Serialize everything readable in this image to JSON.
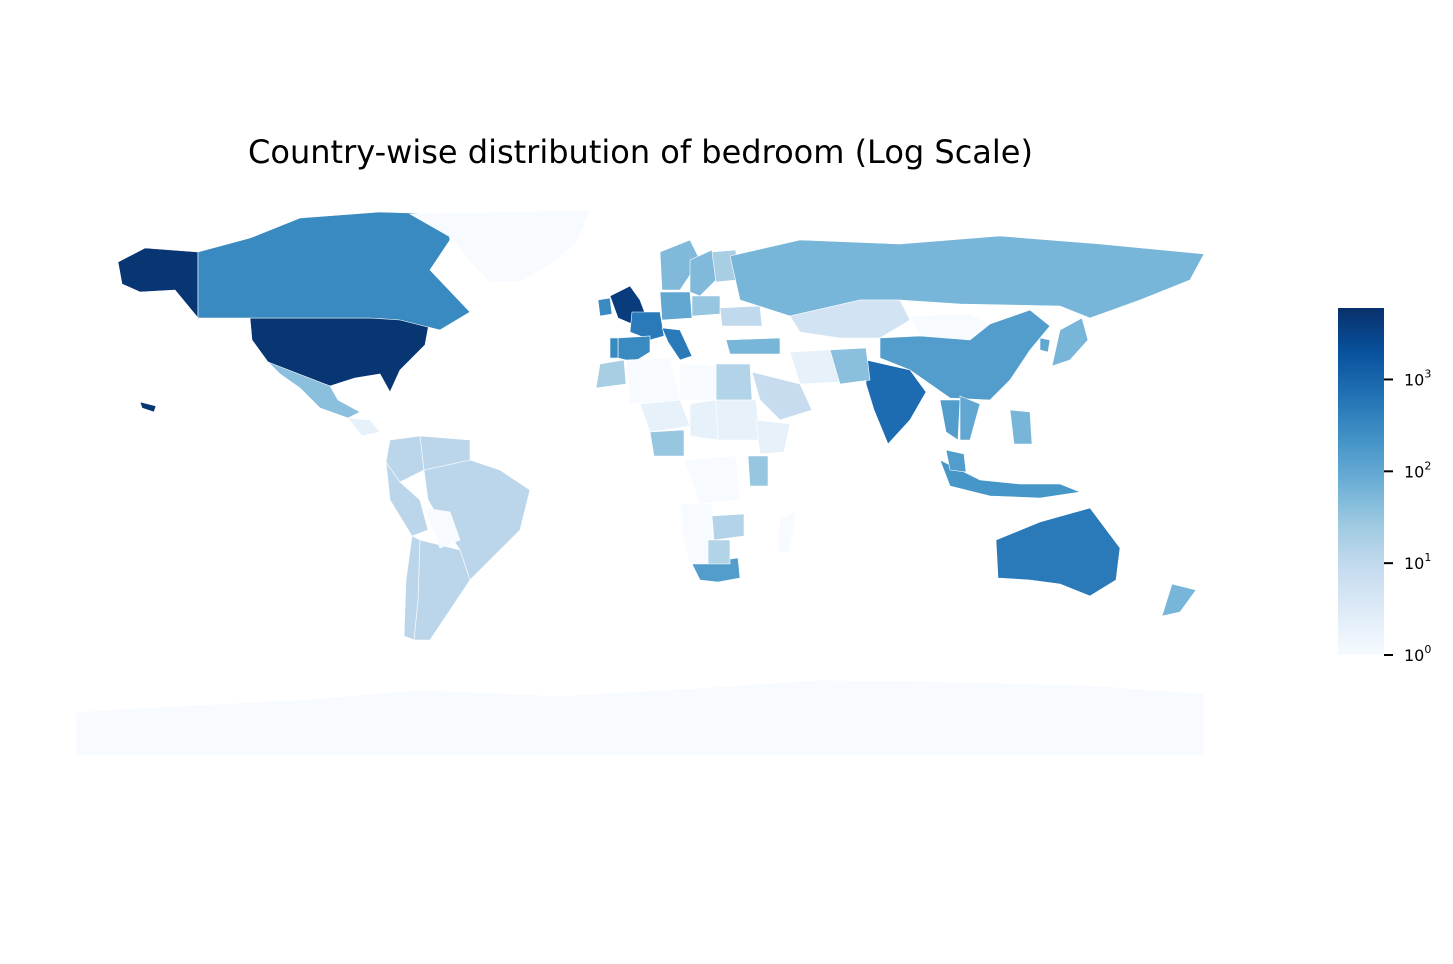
{
  "title": "Country-wise distribution of bedroom (Log Scale)",
  "chart_data": {
    "type": "choropleth",
    "title": "Country-wise distribution of bedroom (Log Scale)",
    "colorscale": "Blues",
    "scale": "log",
    "color_range": [
      1,
      6000
    ],
    "colorbar": {
      "ticks": [
        {
          "value": 1,
          "base": "10",
          "exp": "0"
        },
        {
          "value": 10,
          "base": "10",
          "exp": "1"
        },
        {
          "value": 100,
          "base": "10",
          "exp": "2"
        },
        {
          "value": 1000,
          "base": "10",
          "exp": "3"
        }
      ],
      "position": "right"
    },
    "regions": [
      {
        "name": "United States",
        "value": 5000
      },
      {
        "name": "Alaska (United States)",
        "value": 5000
      },
      {
        "name": "Canada",
        "value": 300
      },
      {
        "name": "Greenland",
        "value": 1
      },
      {
        "name": "Mexico",
        "value": 40
      },
      {
        "name": "Guatemala",
        "value": 2
      },
      {
        "name": "Brazil",
        "value": 12
      },
      {
        "name": "Argentina",
        "value": 12
      },
      {
        "name": "Chile",
        "value": 12
      },
      {
        "name": "Peru",
        "value": 12
      },
      {
        "name": "Colombia",
        "value": 12
      },
      {
        "name": "Venezuela",
        "value": 12
      },
      {
        "name": "Bolivia",
        "value": 1
      },
      {
        "name": "United Kingdom",
        "value": 4000
      },
      {
        "name": "Ireland",
        "value": 300
      },
      {
        "name": "France",
        "value": 500
      },
      {
        "name": "Spain",
        "value": 300
      },
      {
        "name": "Portugal",
        "value": 300
      },
      {
        "name": "Germany",
        "value": 100
      },
      {
        "name": "Italy",
        "value": 500
      },
      {
        "name": "Norway",
        "value": 50
      },
      {
        "name": "Sweden",
        "value": 50
      },
      {
        "name": "Finland",
        "value": 20
      },
      {
        "name": "Poland",
        "value": 30
      },
      {
        "name": "Ukraine",
        "value": 10
      },
      {
        "name": "Turkey",
        "value": 60
      },
      {
        "name": "Russia",
        "value": 60
      },
      {
        "name": "Kazakhstan",
        "value": 5
      },
      {
        "name": "Mongolia",
        "value": 1
      },
      {
        "name": "China",
        "value": 150
      },
      {
        "name": "India",
        "value": 800
      },
      {
        "name": "Japan",
        "value": 60
      },
      {
        "name": "South Korea",
        "value": 100
      },
      {
        "name": "Thailand",
        "value": 150
      },
      {
        "name": "Vietnam",
        "value": 100
      },
      {
        "name": "Indonesia",
        "value": 200
      },
      {
        "name": "Malaysia",
        "value": 150
      },
      {
        "name": "Philippines",
        "value": 60
      },
      {
        "name": "Australia",
        "value": 500
      },
      {
        "name": "New Zealand",
        "value": 60
      },
      {
        "name": "Saudi Arabia",
        "value": 8
      },
      {
        "name": "Egypt",
        "value": 15
      },
      {
        "name": "Nigeria",
        "value": 30
      },
      {
        "name": "Kenya",
        "value": 30
      },
      {
        "name": "South Africa",
        "value": 150
      },
      {
        "name": "Morocco",
        "value": 20
      },
      {
        "name": "Algeria",
        "value": 1
      },
      {
        "name": "Libya",
        "value": 1
      },
      {
        "name": "Niger",
        "value": 2
      },
      {
        "name": "Chad",
        "value": 2
      },
      {
        "name": "Sudan",
        "value": 2
      },
      {
        "name": "Ethiopia",
        "value": 2
      },
      {
        "name": "DR Congo",
        "value": 1
      },
      {
        "name": "Angola",
        "value": 1
      },
      {
        "name": "Namibia",
        "value": 1
      },
      {
        "name": "Botswana",
        "value": 15
      },
      {
        "name": "Zambia",
        "value": 15
      },
      {
        "name": "Madagascar",
        "value": 1
      },
      {
        "name": "Iran",
        "value": 2
      },
      {
        "name": "Pakistan",
        "value": 40
      },
      {
        "name": "Antarctica",
        "value": 1
      },
      {
        "name": "Hawaii (United States)",
        "value": 5000
      }
    ]
  }
}
